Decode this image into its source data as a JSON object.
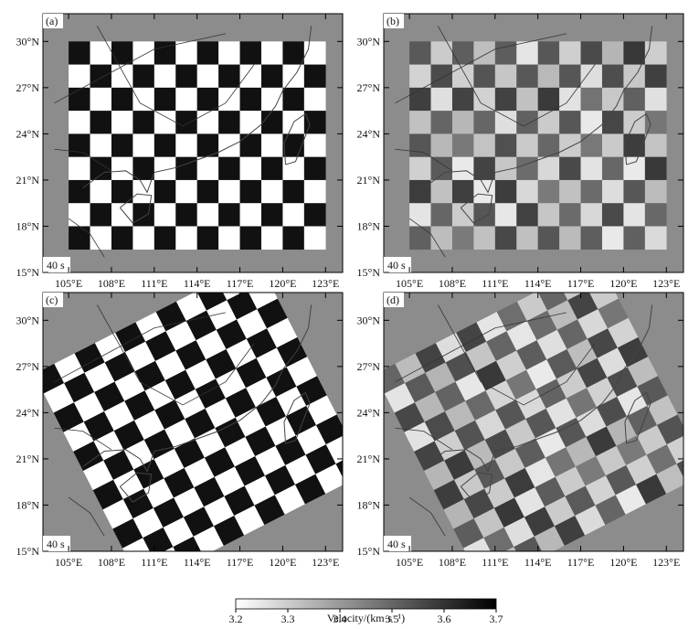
{
  "panels": [
    {
      "label": "(a)",
      "period": "40 s"
    },
    {
      "label": "(b)",
      "period": "40 s"
    },
    {
      "label": "(c)",
      "period": "40 s"
    },
    {
      "label": "(d)",
      "period": "40 s"
    }
  ],
  "lat_ticks": [
    {
      "value": 15,
      "label": "15°N"
    },
    {
      "value": 18,
      "label": "18°N"
    },
    {
      "value": 21,
      "label": "21°N"
    },
    {
      "value": 24,
      "label": "24°N"
    },
    {
      "value": 27,
      "label": "27°N"
    },
    {
      "value": 30,
      "label": "30°N"
    }
  ],
  "lon_ticks": [
    {
      "value": 105,
      "label": "105°E"
    },
    {
      "value": 108,
      "label": "108°E"
    },
    {
      "value": 111,
      "label": "111°E"
    },
    {
      "value": 114,
      "label": "114°E"
    },
    {
      "value": 117,
      "label": "117°E"
    },
    {
      "value": 120,
      "label": "120°E"
    },
    {
      "value": 123,
      "label": "123°E"
    }
  ],
  "colorbar": {
    "label": "Velocity/(km·s⁻¹)",
    "lim": [
      3.2,
      3.7
    ],
    "ticks": [
      3.2,
      3.3,
      3.4,
      3.5,
      3.6,
      3.7
    ]
  }
}
